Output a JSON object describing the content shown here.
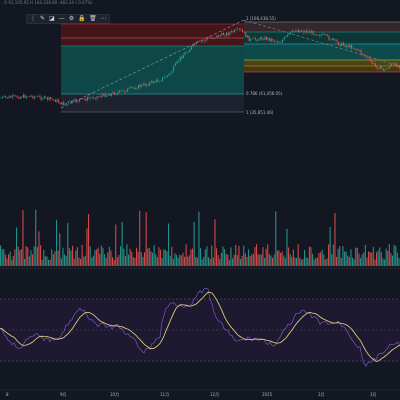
{
  "header": {
    "ohlc_text": "O 91,105.05  H 104,338.60  -483.24 (-0.47%)"
  },
  "toolbar": {
    "icons": [
      "drag-handle-icon",
      "pencil-icon",
      "fill-icon",
      "line-style-icon",
      "settings-icon",
      "lock-icon",
      "trash-icon",
      "more-icon"
    ]
  },
  "fib_left": {
    "top_label": "",
    "mid_label": "0.786 (41,456.05)",
    "bottom_label": "1 (35,851.46)"
  },
  "fib_right": {
    "top_label": "1 (108,438.55)"
  },
  "x_axis": {
    "labels": [
      "8",
      "9月",
      "10月",
      "11月",
      "12月",
      "2025",
      "2月",
      "3月"
    ]
  },
  "colors": {
    "background": "#131722",
    "up": "#26a69a",
    "down": "#ef5350",
    "rsi_line": "#7e57c2",
    "rsi_ma": "#f0d97e",
    "fib_red": "#b71c1c",
    "fib_teal": "#00796b"
  }
}
